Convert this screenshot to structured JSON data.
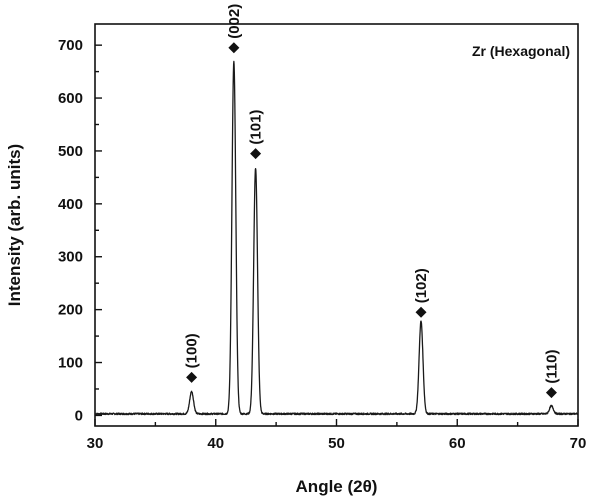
{
  "chart_data": {
    "type": "line",
    "title": "",
    "xlabel": "Angle (2θ)",
    "ylabel": "Intensity (arb. units)",
    "xlim": [
      30,
      70
    ],
    "ylim": [
      -20,
      740
    ],
    "x_ticks": [
      30,
      40,
      50,
      60,
      70
    ],
    "y_ticks": [
      0,
      100,
      200,
      300,
      400,
      500,
      600,
      700
    ],
    "grid": false,
    "legend": {
      "label": "Zr (Hexagonal)",
      "placement": "top-right"
    },
    "baseline": 3,
    "peaks": [
      {
        "label": "(100)",
        "x": 38.0,
        "y": 45,
        "marker_y": 72
      },
      {
        "label": "(002)",
        "x": 41.5,
        "y": 668,
        "marker_y": 695
      },
      {
        "label": "(101)",
        "x": 43.3,
        "y": 468,
        "marker_y": 495
      },
      {
        "label": "(102)",
        "x": 57.0,
        "y": 178,
        "marker_y": 195
      },
      {
        "label": "(110)",
        "x": 67.8,
        "y": 18,
        "marker_y": 43
      }
    ],
    "series": [
      {
        "color": "#1a1a1a"
      }
    ]
  }
}
